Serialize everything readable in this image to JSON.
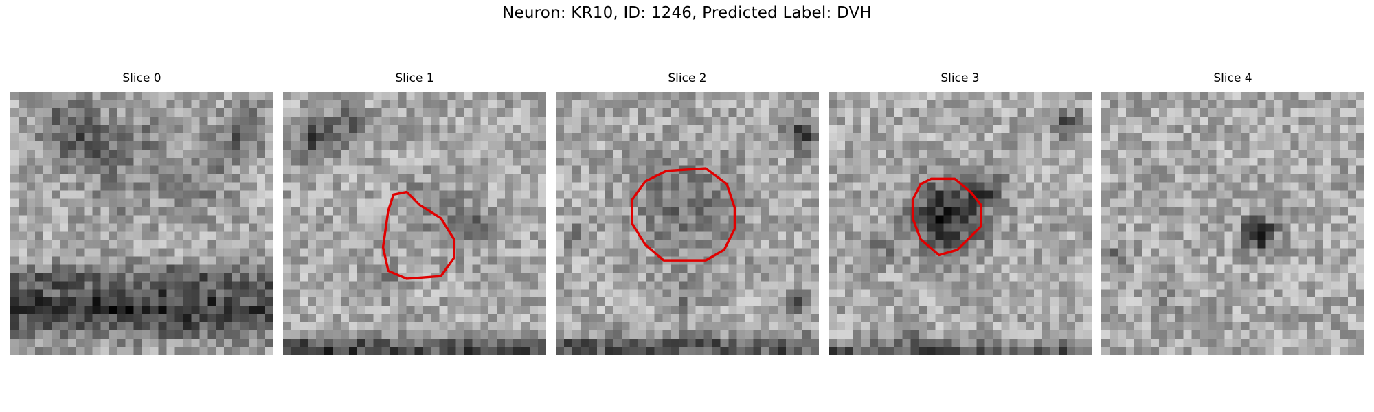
{
  "figure": {
    "title": "Neuron: KR10, ID: 1246, Predicted Label: DVH"
  },
  "panels": [
    {
      "title": "Slice 0",
      "seed": 11,
      "blobs": [
        [
          0.22,
          0.13,
          0.11,
          -70
        ],
        [
          0.48,
          0.17,
          0.1,
          -40
        ],
        [
          0.88,
          0.15,
          0.09,
          -75
        ],
        [
          0.45,
          0.37,
          0.14,
          -30
        ],
        [
          0.72,
          0.33,
          0.12,
          -45
        ],
        [
          0.3,
          0.23,
          0.1,
          -50
        ]
      ],
      "bands": [
        [
          0.83,
          0.1,
          -115
        ],
        [
          0.7,
          0.05,
          -50
        ]
      ],
      "outline": []
    },
    {
      "title": "Slice 1",
      "seed": 23,
      "blobs": [
        [
          0.12,
          0.18,
          0.08,
          -90
        ],
        [
          0.25,
          0.12,
          0.07,
          -60
        ],
        [
          0.55,
          0.44,
          0.11,
          -40
        ],
        [
          0.72,
          0.5,
          0.08,
          -60
        ],
        [
          0.38,
          0.72,
          0.06,
          -50
        ]
      ],
      "bands": [
        [
          0.97,
          0.04,
          -100
        ]
      ],
      "outline": [
        [
          0.42,
          0.39
        ],
        [
          0.47,
          0.38
        ],
        [
          0.52,
          0.43
        ],
        [
          0.6,
          0.48
        ],
        [
          0.65,
          0.56
        ],
        [
          0.65,
          0.63
        ],
        [
          0.6,
          0.7
        ],
        [
          0.47,
          0.71
        ],
        [
          0.4,
          0.68
        ],
        [
          0.38,
          0.59
        ],
        [
          0.4,
          0.45
        ]
      ]
    },
    {
      "title": "Slice 2",
      "seed": 37,
      "blobs": [
        [
          0.93,
          0.16,
          0.06,
          -120
        ],
        [
          0.5,
          0.43,
          0.2,
          -55
        ],
        [
          0.08,
          0.55,
          0.05,
          -40
        ],
        [
          0.48,
          0.78,
          0.05,
          -50
        ],
        [
          0.91,
          0.8,
          0.05,
          -80
        ]
      ],
      "bands": [
        [
          0.97,
          0.04,
          -90
        ]
      ],
      "outline": [
        [
          0.42,
          0.3
        ],
        [
          0.57,
          0.29
        ],
        [
          0.65,
          0.35
        ],
        [
          0.68,
          0.44
        ],
        [
          0.68,
          0.52
        ],
        [
          0.64,
          0.6
        ],
        [
          0.57,
          0.64
        ],
        [
          0.41,
          0.64
        ],
        [
          0.34,
          0.58
        ],
        [
          0.29,
          0.5
        ],
        [
          0.29,
          0.41
        ],
        [
          0.34,
          0.34
        ]
      ]
    },
    {
      "title": "Slice 3",
      "seed": 51,
      "blobs": [
        [
          0.45,
          0.47,
          0.14,
          -130
        ],
        [
          0.6,
          0.37,
          0.07,
          -70
        ],
        [
          0.9,
          0.12,
          0.06,
          -80
        ],
        [
          0.2,
          0.6,
          0.05,
          -45
        ],
        [
          0.32,
          0.93,
          0.05,
          -60
        ]
      ],
      "bands": [
        [
          0.98,
          0.03,
          -80
        ]
      ],
      "outline": [
        [
          0.35,
          0.35
        ],
        [
          0.39,
          0.33
        ],
        [
          0.48,
          0.33
        ],
        [
          0.54,
          0.38
        ],
        [
          0.58,
          0.43
        ],
        [
          0.58,
          0.51
        ],
        [
          0.53,
          0.56
        ],
        [
          0.49,
          0.6
        ],
        [
          0.42,
          0.62
        ],
        [
          0.35,
          0.56
        ],
        [
          0.32,
          0.48
        ],
        [
          0.32,
          0.41
        ]
      ]
    },
    {
      "title": "Slice 4",
      "seed": 67,
      "blobs": [
        [
          0.6,
          0.54,
          0.06,
          -150
        ],
        [
          0.07,
          0.62,
          0.04,
          -60
        ],
        [
          0.25,
          0.78,
          0.06,
          -35
        ]
      ],
      "bands": [],
      "outline": []
    }
  ]
}
